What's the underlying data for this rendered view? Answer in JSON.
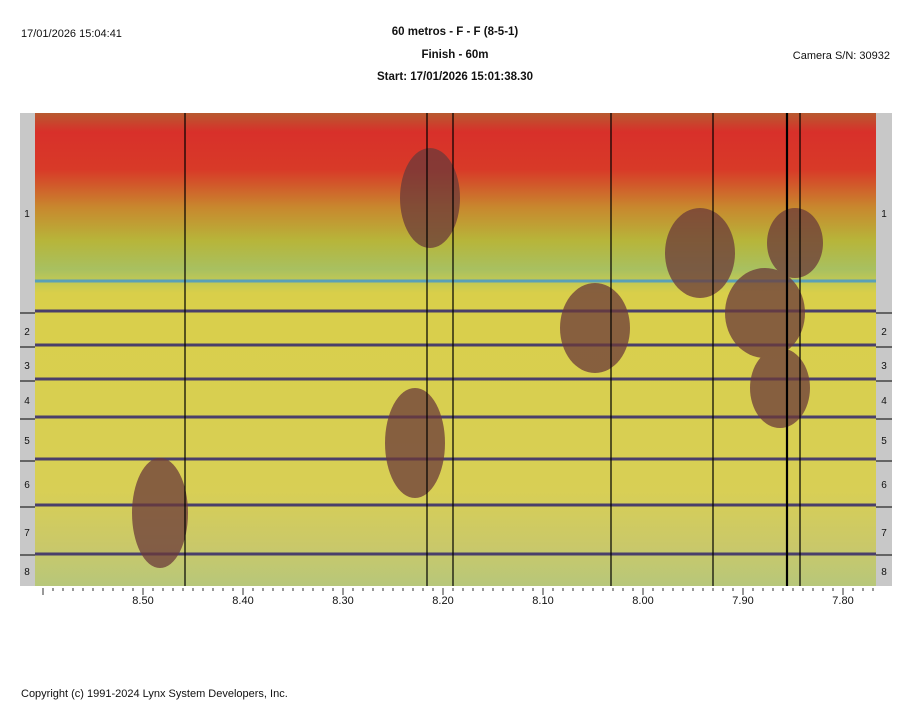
{
  "header": {
    "print_time": "17/01/2026 15:04:41",
    "title": "60 metros - F - F (8-5-1)",
    "subtitle": "Finish - 60m",
    "start": "Start: 17/01/2026 15:01:38.30",
    "camera": "Camera S/N: 30932"
  },
  "lanes": [
    "1",
    "2",
    "3",
    "4",
    "5",
    "6",
    "7",
    "8"
  ],
  "axis": {
    "ticks": [
      "8.50",
      "8.40",
      "8.30",
      "8.20",
      "8.10",
      "8.00",
      "7.90",
      "7.80"
    ],
    "tick_values": [
      8.5,
      8.4,
      8.3,
      8.2,
      8.1,
      8.0,
      7.9,
      7.8
    ],
    "range": [
      8.608,
      7.767
    ]
  },
  "time_cursors": [
    8.458,
    8.216,
    8.19,
    8.032,
    7.93,
    7.856,
    7.843
  ],
  "colors": {
    "top": "#d8302a",
    "mid": "#d9cf4a",
    "bottom": "#b7c77a",
    "lane_line": "#4a3f6a"
  },
  "footer": {
    "copyright": "Copyright (c) 1991-2024 Lynx System Developers, Inc."
  }
}
